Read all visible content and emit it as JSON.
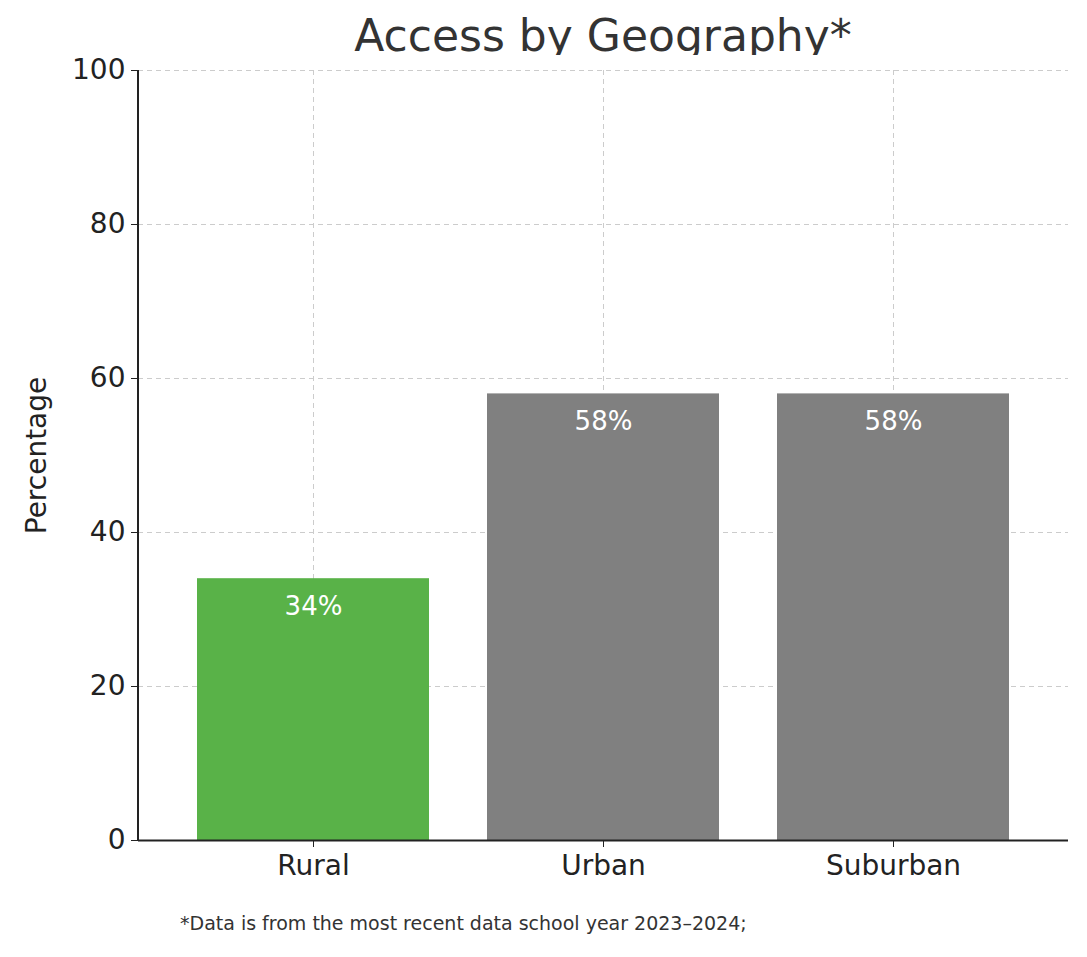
{
  "chart_data": {
    "type": "bar",
    "title": "Access by Geography*",
    "y_label": "Percentage",
    "categories": [
      "Rural",
      "Urban",
      "Suburban"
    ],
    "values": [
      34,
      58,
      58
    ],
    "value_labels": [
      "34%",
      "58%",
      "58%"
    ],
    "colors": [
      "#59b248",
      "#808080",
      "#808080"
    ],
    "ylim": [
      0,
      100
    ],
    "yticks": [
      0,
      20,
      40,
      60,
      80,
      100
    ],
    "grid": true,
    "data_labels": true,
    "footnote": "*Data is from the most recent data school year 2023–2024;"
  }
}
